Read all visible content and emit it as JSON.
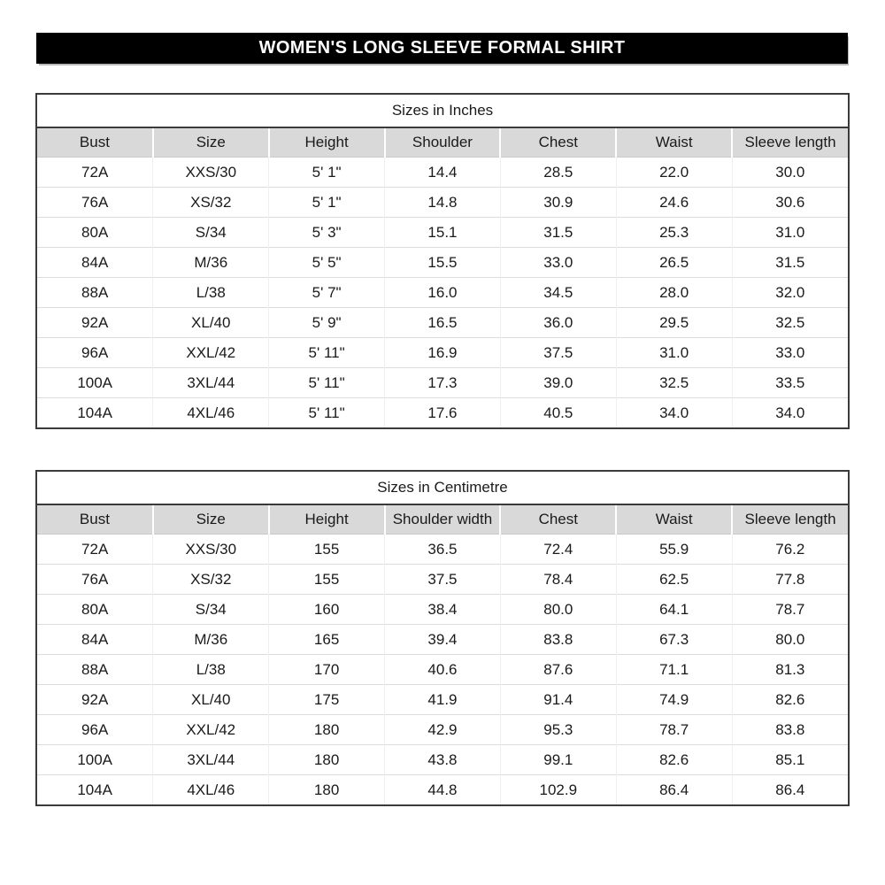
{
  "title": "WOMEN'S LONG SLEEVE FORMAL SHIRT",
  "colors": {
    "title_bg": "#000000",
    "title_fg": "#ffffff",
    "header_bg": "#d9d9d9",
    "outer_border": "#3a3a3a",
    "row_line": "#dcdcdc"
  },
  "tables": [
    {
      "caption": "Sizes in Inches",
      "columns": [
        "Bust",
        "Size",
        "Height",
        "Shoulder",
        "Chest",
        "Waist",
        "Sleeve length"
      ],
      "rows": [
        [
          "72A",
          "XXS/30",
          "5' 1\"",
          "14.4",
          "28.5",
          "22.0",
          "30.0"
        ],
        [
          "76A",
          "XS/32",
          "5' 1\"",
          "14.8",
          "30.9",
          "24.6",
          "30.6"
        ],
        [
          "80A",
          "S/34",
          "5' 3\"",
          "15.1",
          "31.5",
          "25.3",
          "31.0"
        ],
        [
          "84A",
          "M/36",
          "5' 5\"",
          "15.5",
          "33.0",
          "26.5",
          "31.5"
        ],
        [
          "88A",
          "L/38",
          "5' 7\"",
          "16.0",
          "34.5",
          "28.0",
          "32.0"
        ],
        [
          "92A",
          "XL/40",
          "5' 9\"",
          "16.5",
          "36.0",
          "29.5",
          "32.5"
        ],
        [
          "96A",
          "XXL/42",
          "5' 11\"",
          "16.9",
          "37.5",
          "31.0",
          "33.0"
        ],
        [
          "100A",
          "3XL/44",
          "5' 11\"",
          "17.3",
          "39.0",
          "32.5",
          "33.5"
        ],
        [
          "104A",
          "4XL/46",
          "5' 11\"",
          "17.6",
          "40.5",
          "34.0",
          "34.0"
        ]
      ]
    },
    {
      "caption": "Sizes in Centimetre",
      "columns": [
        "Bust",
        "Size",
        "Height",
        "Shoulder width",
        "Chest",
        "Waist",
        "Sleeve length"
      ],
      "rows": [
        [
          "72A",
          "XXS/30",
          "155",
          "36.5",
          "72.4",
          "55.9",
          "76.2"
        ],
        [
          "76A",
          "XS/32",
          "155",
          "37.5",
          "78.4",
          "62.5",
          "77.8"
        ],
        [
          "80A",
          "S/34",
          "160",
          "38.4",
          "80.0",
          "64.1",
          "78.7"
        ],
        [
          "84A",
          "M/36",
          "165",
          "39.4",
          "83.8",
          "67.3",
          "80.0"
        ],
        [
          "88A",
          "L/38",
          "170",
          "40.6",
          "87.6",
          "71.1",
          "81.3"
        ],
        [
          "92A",
          "XL/40",
          "175",
          "41.9",
          "91.4",
          "74.9",
          "82.6"
        ],
        [
          "96A",
          "XXL/42",
          "180",
          "42.9",
          "95.3",
          "78.7",
          "83.8"
        ],
        [
          "100A",
          "3XL/44",
          "180",
          "43.8",
          "99.1",
          "82.6",
          "85.1"
        ],
        [
          "104A",
          "4XL/46",
          "180",
          "44.8",
          "102.9",
          "86.4",
          "86.4"
        ]
      ]
    }
  ]
}
